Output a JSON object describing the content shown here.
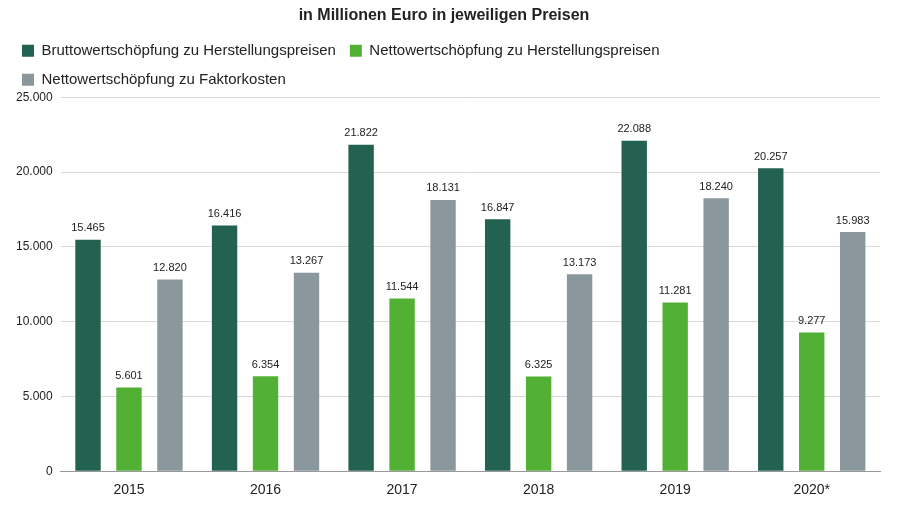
{
  "chart_data": {
    "type": "bar",
    "title": "in Millionen Euro in jeweiligen Preisen",
    "categories": [
      "2015",
      "2016",
      "2017",
      "2018",
      "2019",
      "2020*"
    ],
    "series": [
      {
        "name": "Bruttowertschöpfung zu Herstellungspreisen",
        "color": "#236150",
        "values": [
          15465,
          16416,
          21822,
          16847,
          22088,
          20257
        ],
        "value_labels": [
          "15.465",
          "16.416",
          "21.822",
          "16.847",
          "22.088",
          "20.257"
        ]
      },
      {
        "name": "Nettowertschöpfung zu Herstellungspreisen",
        "color": "#52b135",
        "values": [
          5601,
          6354,
          11544,
          6325,
          11281,
          9277
        ],
        "value_labels": [
          "5.601",
          "6.354",
          "11.544",
          "6.325",
          "11.281",
          "9.277"
        ]
      },
      {
        "name": "Nettowertschöpfung zu Faktorkosten",
        "color": "#8a979d",
        "values": [
          12820,
          13267,
          18131,
          13173,
          18240,
          15983
        ],
        "value_labels": [
          "12.820",
          "13.267",
          "18.131",
          "13.173",
          "18.240",
          "15.983"
        ]
      }
    ],
    "ylim": [
      0,
      25000
    ],
    "yticks": [
      0,
      {
        "value": 5000,
        "label": "5.000"
      },
      {
        "value": 10000,
        "label": "10.000"
      },
      {
        "value": 15000,
        "label": "15.000"
      },
      {
        "value": 20000,
        "label": "20.000"
      },
      {
        "value": 25000,
        "label": "25.000"
      }
    ],
    "grid": true,
    "legend": "top-left",
    "data_labels": true
  }
}
